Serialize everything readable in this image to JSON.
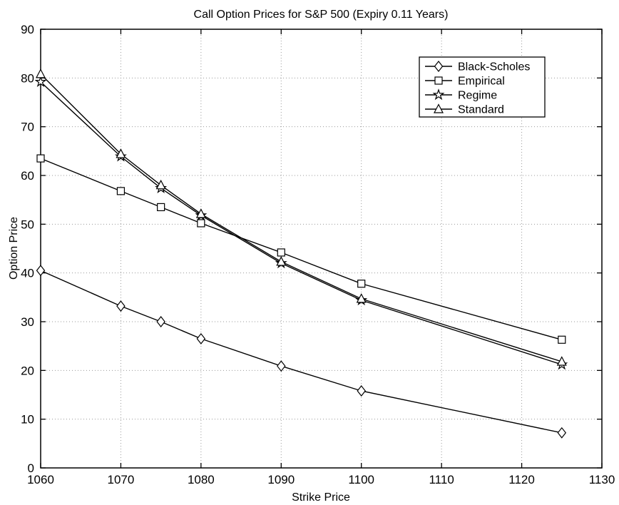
{
  "figure": {
    "background_color": "#ffffff",
    "foreground_color": "#000000",
    "grid_color": "#9a9a9a"
  },
  "chart_data": {
    "type": "line",
    "title": "Call Option Prices for S&P 500 (Expiry 0.11 Years)",
    "xlabel": "Strike Price",
    "ylabel": "Option Price",
    "xlim": [
      1060,
      1130
    ],
    "ylim": [
      0,
      90
    ],
    "xticks": [
      1060,
      1070,
      1080,
      1090,
      1100,
      1110,
      1120,
      1130
    ],
    "yticks": [
      0,
      10,
      20,
      30,
      40,
      50,
      60,
      70,
      80,
      90
    ],
    "grid": "on",
    "legend_position": "upper-right",
    "x": [
      1060,
      1070,
      1075,
      1080,
      1090,
      1100,
      1125
    ],
    "series": [
      {
        "name": "Black-Scholes",
        "marker": "diamond",
        "values": [
          40.5,
          33.2,
          30.0,
          26.5,
          20.9,
          15.8,
          7.2
        ]
      },
      {
        "name": "Empirical",
        "marker": "square",
        "values": [
          63.5,
          56.8,
          53.5,
          50.2,
          44.2,
          37.8,
          26.3
        ]
      },
      {
        "name": "Regime",
        "marker": "star",
        "values": [
          79.2,
          63.9,
          57.4,
          51.8,
          42.0,
          34.4,
          21.2
        ]
      },
      {
        "name": "Standard",
        "marker": "triangle",
        "values": [
          80.8,
          64.4,
          58.0,
          52.1,
          42.3,
          34.7,
          21.8
        ]
      }
    ]
  }
}
